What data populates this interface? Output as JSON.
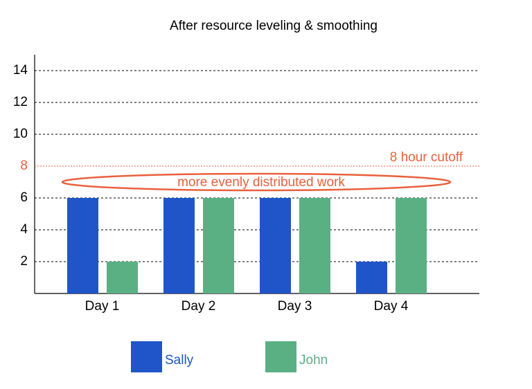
{
  "chart_data": {
    "type": "bar",
    "title": "After resource leveling & smoothing",
    "categories": [
      "Day 1",
      "Day 2",
      "Day 3",
      "Day 4"
    ],
    "series": [
      {
        "name": "Sally",
        "color": "#1f55c8",
        "values": [
          6,
          6,
          6,
          2
        ]
      },
      {
        "name": "John",
        "color": "#5bb083",
        "values": [
          2,
          6,
          6,
          6
        ]
      }
    ],
    "ylim": [
      0,
      15
    ],
    "yticks": [
      2,
      4,
      6,
      8,
      10,
      12,
      14
    ],
    "grid": true,
    "reference_line": {
      "value": 8,
      "label": "8 hour cutoff",
      "color": "#e8603c"
    },
    "annotation": {
      "text": "more evenly distributed work",
      "color": "#e8603c"
    },
    "legend": "bottom"
  }
}
